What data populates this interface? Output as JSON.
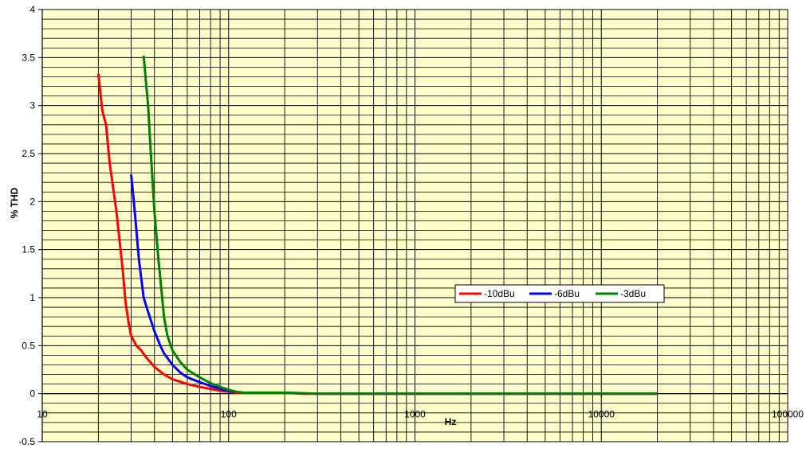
{
  "chart_data": {
    "type": "line",
    "title": "",
    "xlabel": "Hz",
    "ylabel": "% THD",
    "xscale": "log",
    "xlim": [
      10,
      100000
    ],
    "ylim": [
      -0.5,
      4
    ],
    "grid": true,
    "minor_grid": true,
    "plot_background": "#ffffcc",
    "x_ticks": [
      10,
      100,
      1000,
      10000,
      100000
    ],
    "x_tick_labels": [
      "10",
      "100",
      "1000",
      "10000",
      "100000"
    ],
    "y_ticks": [
      -0.5,
      0,
      0.5,
      1,
      1.5,
      2,
      2.5,
      3,
      3.5,
      4
    ],
    "y_tick_labels": [
      "-0.5",
      "0",
      "0.5",
      "1",
      "1.5",
      "2",
      "2.5",
      "3",
      "3.5",
      "4"
    ],
    "legend": {
      "placement": "center-right",
      "entries": [
        "-10dBu",
        "-6dBu",
        "-3dBu"
      ]
    },
    "series": [
      {
        "name": "-10dBu",
        "color": "#ff0000",
        "x": [
          20,
          21,
          22,
          23,
          25,
          27,
          28,
          29,
          30,
          31,
          32,
          34,
          36,
          40,
          45,
          50,
          60,
          70,
          80,
          90,
          100,
          110,
          120,
          150,
          200,
          250,
          300,
          500,
          1000,
          2000,
          5000,
          10000,
          20000
        ],
        "y": [
          3.33,
          2.95,
          2.8,
          2.4,
          1.9,
          1.3,
          0.95,
          0.75,
          0.6,
          0.55,
          0.5,
          0.45,
          0.38,
          0.28,
          0.2,
          0.15,
          0.1,
          0.07,
          0.05,
          0.03,
          0.02,
          0.01,
          0.01,
          0.01,
          0.01,
          0.0,
          0.0,
          0.0,
          0.0,
          0.0,
          0.0,
          0.0,
          0.0
        ]
      },
      {
        "name": "-6dBu",
        "color": "#0000ff",
        "x": [
          30,
          31,
          32,
          33,
          35,
          37,
          40,
          43,
          45,
          50,
          55,
          60,
          70,
          80,
          90,
          100,
          110,
          120,
          150,
          200,
          300,
          500,
          1000,
          2000,
          5000,
          10000,
          20000
        ],
        "y": [
          2.28,
          2.0,
          1.7,
          1.4,
          1.0,
          0.85,
          0.65,
          0.5,
          0.42,
          0.3,
          0.22,
          0.17,
          0.12,
          0.08,
          0.05,
          0.03,
          0.02,
          0.01,
          0.01,
          0.01,
          0.0,
          0.0,
          0.0,
          0.0,
          0.0,
          0.0,
          0.0
        ]
      },
      {
        "name": "-3dBu",
        "color": "#008000",
        "x": [
          35,
          36,
          37,
          38,
          40,
          42,
          44,
          45,
          47,
          50,
          55,
          60,
          70,
          80,
          90,
          100,
          110,
          120,
          150,
          200,
          300,
          500,
          1000,
          2000,
          5000,
          10000,
          20000
        ],
        "y": [
          3.52,
          3.25,
          3.0,
          2.6,
          1.9,
          1.4,
          1.0,
          0.8,
          0.6,
          0.45,
          0.33,
          0.25,
          0.17,
          0.11,
          0.07,
          0.04,
          0.02,
          0.01,
          0.01,
          0.01,
          0.0,
          0.0,
          0.0,
          0.0,
          0.0,
          0.0,
          0.0
        ]
      }
    ]
  }
}
